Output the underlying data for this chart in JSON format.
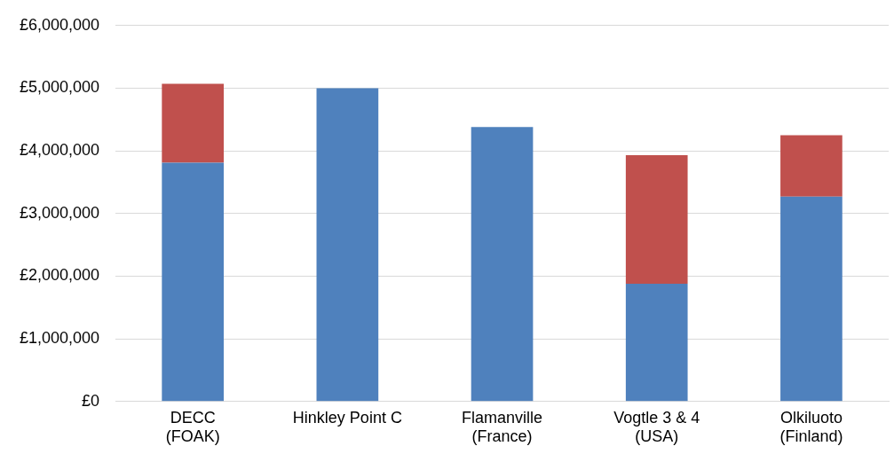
{
  "chart_data": {
    "type": "bar",
    "stacked": true,
    "categories": [
      "DECC\n(FOAK)",
      "Hinkley Point C",
      "Flamanville\n(France)",
      "Vogtle 3 & 4\n(USA)",
      "Olkiluoto\n(Finland)"
    ],
    "series": [
      {
        "color": "#4f81bd",
        "values": [
          3810000,
          5000000,
          4380000,
          1880000,
          3270000
        ]
      },
      {
        "color": "#c0504d",
        "values": [
          1260000,
          null,
          null,
          2050000,
          980000
        ]
      }
    ],
    "ylim": [
      0,
      6000000
    ],
    "yticks": [
      {
        "value": 0,
        "label": "£0"
      },
      {
        "value": 1000000,
        "label": "£1,000,000"
      },
      {
        "value": 2000000,
        "label": "£2,000,000"
      },
      {
        "value": 3000000,
        "label": "£3,000,000"
      },
      {
        "value": 4000000,
        "label": "£4,000,000"
      },
      {
        "value": 5000000,
        "label": "£5,000,000"
      },
      {
        "value": 6000000,
        "label": "£6,000,000"
      }
    ],
    "grid": "y",
    "legend": false
  }
}
